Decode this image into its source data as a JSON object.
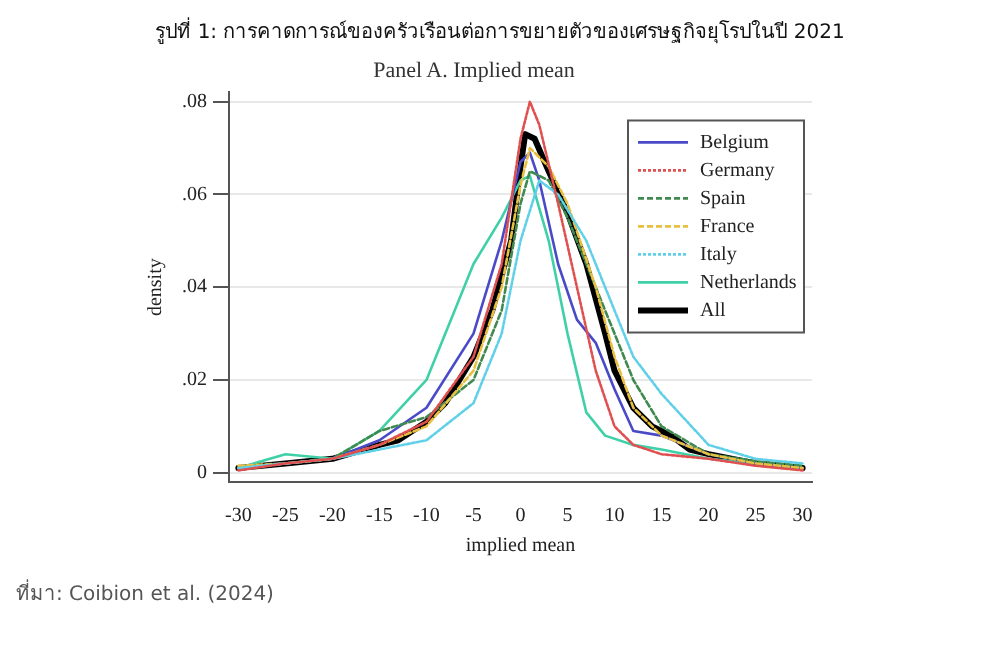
{
  "chart_data": {
    "type": "line",
    "title": "รูปที่ 1: การคาดการณ์ของครัวเรือนต่อการขยายตัวของเศรษฐกิจยุโรปในปี 2021",
    "subtitle": "Panel A. Implied mean",
    "xlabel": "implied mean",
    "ylabel": "density",
    "annotations": [
      "ที่มา: Coibion et al. (2024)"
    ],
    "xlim": [
      -31,
      31
    ],
    "xticks": [
      -30,
      -25,
      -20,
      -15,
      -10,
      -5,
      0,
      5,
      10,
      15,
      20,
      25,
      30
    ],
    "ylim": [
      -0.002,
      0.082
    ],
    "yticks": [
      0,
      {
        "value": 0.02,
        "label": ".02"
      },
      {
        "value": 0.04,
        "label": ".04"
      },
      {
        "value": 0.06,
        "label": ".06"
      },
      {
        "value": 0.08,
        "label": ".08"
      }
    ],
    "grid": "y",
    "legend": "top right",
    "marker": "none",
    "series": [
      {
        "name": "Belgium",
        "color": "#4a4ac8",
        "line_style": "solid",
        "x": [
          -30,
          -25,
          -20,
          -15,
          -10,
          -5,
          -2,
          0,
          1,
          2,
          4,
          6,
          8,
          10,
          12,
          15,
          20,
          25,
          30
        ],
        "values": [
          0.001,
          0.002,
          0.003,
          0.007,
          0.014,
          0.03,
          0.05,
          0.067,
          0.069,
          0.063,
          0.045,
          0.033,
          0.028,
          0.018,
          0.009,
          0.008,
          0.004,
          0.002,
          0.001
        ]
      },
      {
        "name": "Germany",
        "color": "#e05050",
        "line_style": "dotted",
        "x": [
          -30,
          -25,
          -20,
          -15,
          -10,
          -5,
          -2,
          0,
          1,
          2,
          4,
          6,
          8,
          10,
          12,
          15,
          20,
          25,
          30
        ],
        "values": [
          0.0005,
          0.002,
          0.003,
          0.006,
          0.011,
          0.025,
          0.045,
          0.072,
          0.08,
          0.075,
          0.058,
          0.04,
          0.022,
          0.01,
          0.006,
          0.004,
          0.003,
          0.0015,
          0.0005
        ]
      },
      {
        "name": "Spain",
        "color": "#408a50",
        "line_style": "dashed",
        "x": [
          -30,
          -25,
          -20,
          -15,
          -10,
          -5,
          -2,
          0,
          1,
          3,
          5,
          8,
          10,
          12,
          15,
          20,
          25,
          30
        ],
        "values": [
          0.001,
          0.002,
          0.003,
          0.009,
          0.012,
          0.02,
          0.035,
          0.058,
          0.065,
          0.063,
          0.055,
          0.04,
          0.03,
          0.02,
          0.01,
          0.004,
          0.0025,
          0.0015
        ]
      },
      {
        "name": "France",
        "color": "#e8c040",
        "line_style": "dashed",
        "x": [
          -30,
          -25,
          -20,
          -15,
          -10,
          -5,
          -2,
          0,
          1,
          3,
          5,
          8,
          10,
          12,
          15,
          20,
          25,
          30
        ],
        "values": [
          0.0015,
          0.002,
          0.003,
          0.006,
          0.01,
          0.022,
          0.04,
          0.062,
          0.07,
          0.066,
          0.058,
          0.04,
          0.025,
          0.014,
          0.008,
          0.004,
          0.002,
          0.001
        ]
      },
      {
        "name": "Italy",
        "color": "#60d0e8",
        "line_style": "dotted",
        "x": [
          -30,
          -25,
          -20,
          -15,
          -10,
          -5,
          -2,
          0,
          2,
          4,
          7,
          10,
          12,
          15,
          20,
          25,
          30
        ],
        "values": [
          0.001,
          0.002,
          0.003,
          0.005,
          0.007,
          0.015,
          0.03,
          0.05,
          0.063,
          0.06,
          0.05,
          0.035,
          0.025,
          0.017,
          0.006,
          0.003,
          0.002
        ]
      },
      {
        "name": "Netherlands",
        "color": "#40d0a8",
        "line_style": "solid",
        "x": [
          -30,
          -25,
          -20,
          -15,
          -10,
          -7,
          -5,
          -2,
          0,
          1,
          3,
          5,
          7,
          9,
          12,
          15,
          20,
          25,
          30
        ],
        "values": [
          0.001,
          0.004,
          0.003,
          0.009,
          0.02,
          0.035,
          0.045,
          0.055,
          0.063,
          0.064,
          0.05,
          0.03,
          0.013,
          0.008,
          0.006,
          0.005,
          0.003,
          0.002,
          0.001
        ]
      },
      {
        "name": "All",
        "color": "#000000",
        "line_style": "solid",
        "x": [
          -30,
          -25,
          -20,
          -15,
          -13,
          -10,
          -8,
          -5,
          -3,
          -1,
          0,
          0.5,
          1.5,
          3,
          5,
          7,
          9,
          10,
          12,
          14,
          16,
          18,
          20,
          25,
          30
        ],
        "values": [
          0.001,
          0.002,
          0.003,
          0.006,
          0.007,
          0.011,
          0.015,
          0.025,
          0.035,
          0.05,
          0.066,
          0.073,
          0.072,
          0.065,
          0.056,
          0.045,
          0.03,
          0.022,
          0.014,
          0.01,
          0.008,
          0.005,
          0.004,
          0.002,
          0.001
        ]
      }
    ]
  }
}
